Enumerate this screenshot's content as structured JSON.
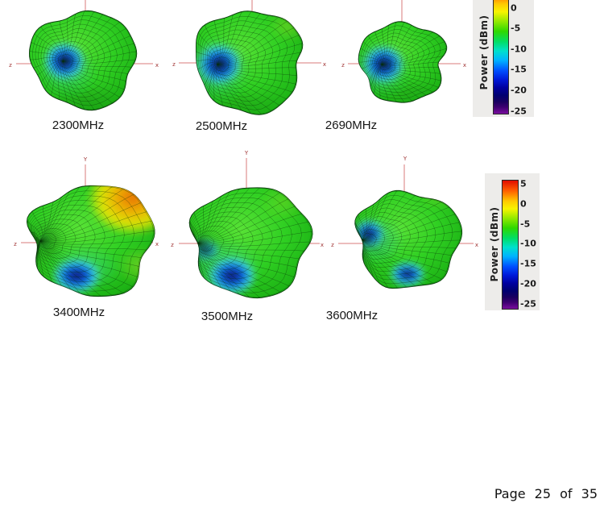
{
  "page": {
    "footer": "Page 25 of 35",
    "background": "#ffffff"
  },
  "figure": {
    "patterns": [
      {
        "frequency": "2300MHz",
        "axis_left": "z",
        "axis_right": "x",
        "axis_top": ""
      },
      {
        "frequency": "2500MHz",
        "axis_left": "z",
        "axis_right": "x",
        "axis_top": ""
      },
      {
        "frequency": "2690MHz",
        "axis_left": "z",
        "axis_right": "x",
        "axis_top": ""
      },
      {
        "frequency": "3400MHz",
        "axis_left": "z",
        "axis_right": "x",
        "axis_top": "Y"
      },
      {
        "frequency": "3500MHz",
        "axis_left": "z",
        "axis_right": "x",
        "axis_top": "Y"
      },
      {
        "frequency": "3600MHz",
        "axis_left": "z",
        "axis_right": "x",
        "axis_top": "Y"
      }
    ],
    "colorbar": {
      "label": "Power (dBm)",
      "ticks": [
        "5",
        "0",
        "-5",
        "-10",
        "-15",
        "-20",
        "-25"
      ],
      "max": 5,
      "min": -25,
      "gradient": [
        "#e00d00 0%",
        "#ff6000 8%",
        "#ffc800 16%",
        "#f8f400 22%",
        "#8ae800 30%",
        "#2fd800 37%",
        "#00dd66 45%",
        "#00e0cc 52%",
        "#00b4ff 59%",
        "#0050ff 67%",
        "#0018d8 74%",
        "#0000a0 80%",
        "#000070 86%",
        "#1a0060 91%",
        "#3d0070 95%",
        "#7a0d9e 100%"
      ]
    },
    "colors": {
      "axis_red": "#d97b7b",
      "axis_label_red": "#a03535",
      "surface_green": "#2fcf22",
      "null_blue": "#0a2fc0",
      "peak_orange": "#ff6a00",
      "panel_gray": "#edecea"
    }
  },
  "chart_data": {
    "type": "3d-surface-radiation-pattern-grid",
    "subplots": [
      "2300MHz",
      "2500MHz",
      "2690MHz",
      "3400MHz",
      "3500MHz",
      "3600MHz"
    ],
    "colorbar": {
      "title": "Power (dBm)",
      "ticks": [
        5,
        0,
        -5,
        -10,
        -15,
        -20,
        -25
      ],
      "min": -25,
      "max": 5
    },
    "spatial_axes": [
      "x",
      "Y",
      "z"
    ],
    "layout": {
      "rows": 2,
      "cols": 3,
      "colorbar_per_row": true,
      "top_colorbar_cut_off": true
    }
  }
}
